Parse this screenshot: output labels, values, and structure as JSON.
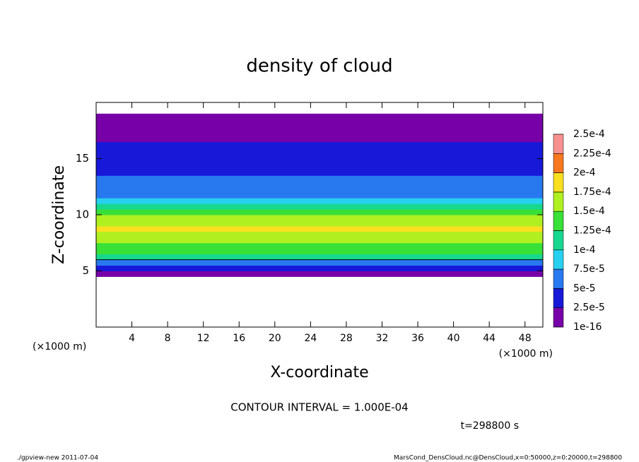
{
  "chart_data": {
    "type": "heatmap",
    "title": "density of cloud",
    "x_label": "X-coordinate",
    "y_label": "Z-coordinate",
    "x_unit": "(×1000 m)",
    "y_unit": "(×1000 m)",
    "xlim": [
      0,
      50
    ],
    "xticks": [
      4,
      8,
      12,
      16,
      20,
      24,
      28,
      32,
      36,
      40,
      44,
      48
    ],
    "ylim": [
      0,
      20
    ],
    "yticks": [
      5,
      10,
      15
    ],
    "z_bins": [
      4.5,
      5,
      5.5,
      6,
      6.5,
      7,
      7.5,
      8,
      8.5,
      9,
      9.5,
      10,
      10.5,
      11,
      11.5,
      12,
      12.5,
      13,
      13.5,
      14,
      14.5,
      15,
      15.5,
      16,
      16.5,
      17,
      17.5,
      18,
      18.5,
      19
    ],
    "values": [
      1e-05,
      4e-05,
      7e-05,
      0.000105,
      0.00013,
      0.000145,
      0.00016,
      0.00017,
      0.000175,
      0.00017,
      0.000155,
      0.00013,
      0.0001,
      8e-05,
      7e-05,
      6.5e-05,
      6e-05,
      5.5e-05,
      4.5e-05,
      3.5e-05,
      3e-05,
      3.5e-05,
      3e-05,
      2.5e-05,
      2e-05,
      1.5e-05,
      1e-05,
      8e-06,
      5e-06
    ],
    "contour_level": 0.0001,
    "colorbar": {
      "ticks": [
        {
          "value": 1e-16,
          "label": "1e-16"
        },
        {
          "value": 2.5e-05,
          "label": "2.5e-5"
        },
        {
          "value": 5e-05,
          "label": "5e-5"
        },
        {
          "value": 7.5e-05,
          "label": "7.5e-5"
        },
        {
          "value": 0.0001,
          "label": "1e-4"
        },
        {
          "value": 0.000125,
          "label": "1.25e-4"
        },
        {
          "value": 0.00015,
          "label": "1.5e-4"
        },
        {
          "value": 0.000175,
          "label": "1.75e-4"
        },
        {
          "value": 0.0002,
          "label": "2e-4"
        },
        {
          "value": 0.000225,
          "label": "2.25e-4"
        },
        {
          "value": 0.00025,
          "label": "2.5e-4"
        }
      ],
      "colors": [
        "#7800a8",
        "#1818d8",
        "#2878f0",
        "#28d0f0",
        "#18d890",
        "#38e038",
        "#b0f020",
        "#f8e020",
        "#f87820",
        "#f89090"
      ]
    },
    "contour_text": "CONTOUR INTERVAL = 1.000E-04",
    "time_text": "t=298800 s",
    "footer_left": "./gpview-new  2011-07-04",
    "footer_right": "MarsCond_DensCloud.nc@DensCloud,x=0:50000,z=0:20000,t=298800"
  }
}
